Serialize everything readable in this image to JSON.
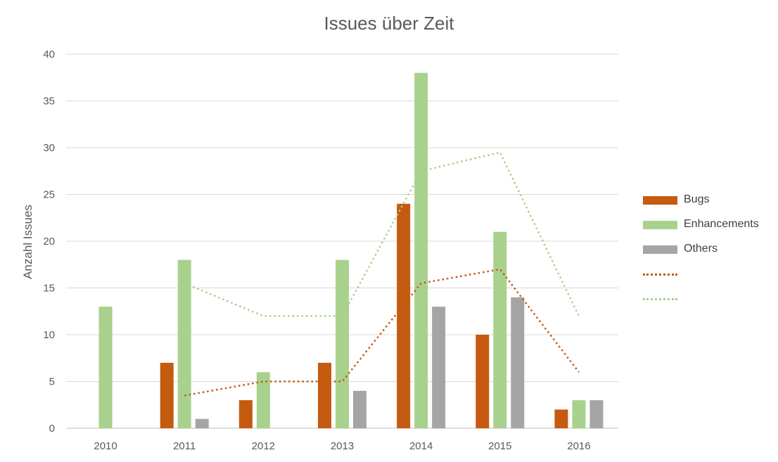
{
  "chart_data": {
    "type": "bar",
    "title": "Issues über Zeit",
    "xlabel": "",
    "ylabel": "Anzahl Issues",
    "categories": [
      "2010",
      "2011",
      "2012",
      "2013",
      "2014",
      "2015",
      "2016"
    ],
    "ylim": [
      0,
      40
    ],
    "yticks": [
      0,
      5,
      10,
      15,
      20,
      25,
      30,
      35,
      40
    ],
    "grid": true,
    "legend_position": "right",
    "series": [
      {
        "name": "Bugs",
        "color": "#c55a11",
        "values": [
          0,
          7,
          3,
          7,
          24,
          10,
          2
        ]
      },
      {
        "name": "Enhancements",
        "color": "#a9d18e",
        "values": [
          13,
          18,
          6,
          18,
          38,
          21,
          3
        ]
      },
      {
        "name": "Others",
        "color": "#a5a5a5",
        "values": [
          0,
          1,
          0,
          4,
          13,
          14,
          3
        ]
      }
    ],
    "trendlines": [
      {
        "name": "",
        "color": "#c55a11",
        "style": "dotted",
        "x": [
          "2011",
          "2012",
          "2013",
          "2014",
          "2015",
          "2016"
        ],
        "values": [
          3.5,
          5,
          5,
          15.5,
          17,
          6
        ]
      },
      {
        "name": "",
        "color": "#a9d18e",
        "style": "dotted",
        "x": [
          "2011",
          "2012",
          "2013",
          "2014",
          "2015",
          "2016"
        ],
        "values": [
          15.5,
          12,
          12,
          27.5,
          29.5,
          12
        ]
      }
    ]
  }
}
